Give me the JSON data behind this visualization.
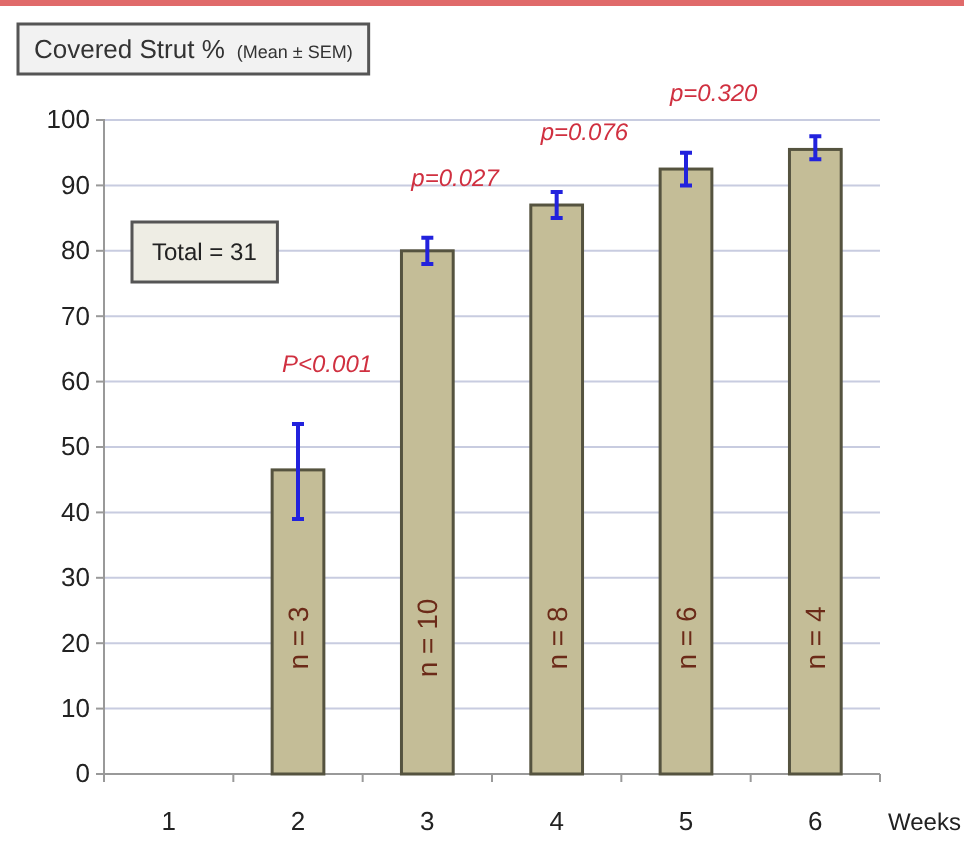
{
  "chart_data": {
    "type": "bar",
    "title": "Covered Strut %",
    "subtitle": "(Mean ± SEM)",
    "xlabel": "Weeks",
    "categories": [
      "1",
      "2",
      "3",
      "4",
      "5",
      "6"
    ],
    "values": [
      null,
      46.5,
      80,
      87,
      92.5,
      95.5
    ],
    "errors": [
      null,
      [
        39,
        53.5
      ],
      [
        78,
        82
      ],
      [
        85,
        89
      ],
      [
        90,
        95
      ],
      [
        94,
        97.5
      ]
    ],
    "color": "#c4bd97",
    "ylim": [
      0,
      100
    ],
    "yticks": [
      0,
      10,
      20,
      30,
      40,
      50,
      60,
      70,
      80,
      90,
      100
    ],
    "grid": "y",
    "annotations": [
      "Total = 31",
      "P<0.001",
      "p=0.027",
      "p=0.076",
      "p=0.320",
      "n = 3",
      "n = 10",
      "n = 8",
      "n = 6",
      "n = 4"
    ]
  }
}
